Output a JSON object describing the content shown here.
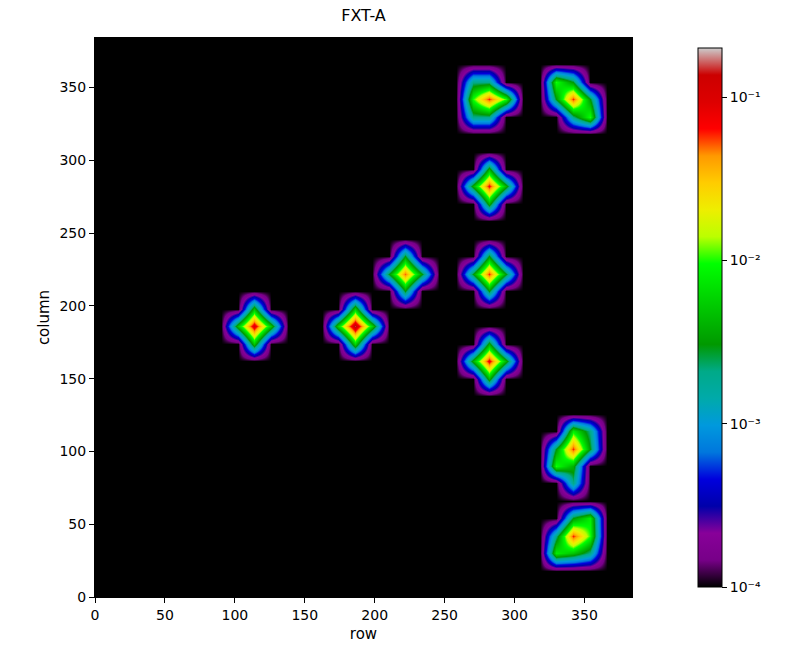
{
  "chart_data": {
    "type": "heatmap",
    "title": "FXT-A",
    "x_label": "row",
    "y_label": "column",
    "xlim": [
      0,
      384
    ],
    "ylim": [
      0,
      384
    ],
    "xticks": [
      0,
      50,
      100,
      150,
      200,
      250,
      300,
      350
    ],
    "yticks": [
      0,
      50,
      100,
      150,
      200,
      250,
      300,
      350
    ],
    "log": true,
    "grid": false,
    "x": [
      6,
      18,
      30,
      42,
      54,
      66,
      78,
      90,
      102,
      114,
      126,
      138,
      150,
      162,
      174,
      186,
      198,
      210,
      222,
      234,
      246,
      258,
      270,
      282,
      294,
      306,
      318,
      330,
      342,
      354,
      366,
      378
    ],
    "y": [
      6,
      18,
      30,
      42,
      54,
      66,
      78,
      90,
      102,
      114,
      126,
      138,
      150,
      162,
      174,
      186,
      198,
      210,
      222,
      234,
      246,
      258,
      270,
      282,
      294,
      306,
      318,
      330,
      342,
      354,
      366,
      378
    ],
    "z": [
      [
        0.0001,
        0.0001,
        0.0001,
        0.0001,
        0.0001,
        0.0001,
        0.0001,
        0.0001,
        0.0001,
        0.0001,
        0.0001,
        0.0001,
        0.0001,
        0.0001,
        0.0001,
        0.0001,
        0.0001,
        0.0001,
        0.0001,
        0.0001,
        0.0001,
        0.0001,
        0.0001,
        0.0001,
        0.0001,
        0.0001,
        0.0001,
        0.0001,
        0.0001,
        0.0001,
        0.0001,
        0.0001
      ],
      [
        0.0001,
        0.0001,
        0.0001,
        0.0001,
        0.0001,
        0.0001,
        0.0001,
        0.0001,
        0.0001,
        0.0001,
        0.0001,
        0.0001,
        0.0001,
        0.0001,
        0.0001,
        0.0001,
        0.0001,
        0.0001,
        0.0001,
        0.0001,
        0.0001,
        0.0001,
        0.0001,
        0.0001,
        0.0001,
        0.0001,
        0.0001,
        0.0001,
        0.0001,
        0.0001,
        0.0001,
        0.0001
      ],
      [
        0.0001,
        0.0001,
        0.0001,
        0.0001,
        0.0001,
        0.0001,
        0.0001,
        0.0001,
        0.0001,
        0.0001,
        0.0001,
        0.0001,
        0.0001,
        0.0001,
        0.0001,
        0.0001,
        0.0001,
        0.0001,
        0.0001,
        0.0001,
        0.0001,
        0.0001,
        0.0001,
        0.0001,
        0.0001,
        0.0001,
        0.0001,
        0.008,
        0.005,
        0.002,
        0.0001,
        0.0001
      ],
      [
        0.0001,
        0.0001,
        0.0001,
        0.0001,
        0.0001,
        0.0001,
        0.0001,
        0.0001,
        0.0001,
        0.0001,
        0.0001,
        0.0001,
        0.0001,
        0.0001,
        0.0001,
        0.0001,
        0.0001,
        0.0001,
        0.0001,
        0.0001,
        0.0001,
        0.0001,
        0.0001,
        0.0001,
        0.0001,
        0.0001,
        0.0001,
        0.002,
        0.06,
        0.01,
        0.0001,
        0.0001
      ],
      [
        0.0001,
        0.0001,
        0.0001,
        0.0001,
        0.0001,
        0.0001,
        0.0001,
        0.0001,
        0.0001,
        0.0001,
        0.0001,
        0.0001,
        0.0001,
        0.0001,
        0.0001,
        0.0001,
        0.0001,
        0.0001,
        0.0001,
        0.0001,
        0.0001,
        0.0001,
        0.0001,
        0.0001,
        0.0001,
        0.0001,
        0.0001,
        0.0001,
        0.003,
        0.008,
        0.0001,
        0.0001
      ],
      [
        0.0001,
        0.0001,
        0.0001,
        0.0001,
        0.0001,
        0.0001,
        0.0001,
        0.0001,
        0.0001,
        0.0001,
        0.0001,
        0.0001,
        0.0001,
        0.0001,
        0.0001,
        0.0001,
        0.0001,
        0.0001,
        0.0001,
        0.0001,
        0.0001,
        0.0001,
        0.0001,
        0.0001,
        0.0001,
        0.0001,
        0.0001,
        0.0001,
        0.0001,
        0.0001,
        0.0001,
        0.0001
      ],
      [
        0.0001,
        0.0001,
        0.0001,
        0.0001,
        0.0001,
        0.0001,
        0.0001,
        0.0001,
        0.0001,
        0.0001,
        0.0001,
        0.0001,
        0.0001,
        0.0001,
        0.0001,
        0.0001,
        0.0001,
        0.0001,
        0.0001,
        0.0001,
        0.0001,
        0.0001,
        0.0001,
        0.0001,
        0.0001,
        0.0001,
        0.0001,
        0.0001,
        0.002,
        0.0001,
        0.0001,
        0.0001
      ],
      [
        0.0001,
        0.0001,
        0.0001,
        0.0001,
        0.0001,
        0.0001,
        0.0001,
        0.0001,
        0.0001,
        0.0001,
        0.0001,
        0.0001,
        0.0001,
        0.0001,
        0.0001,
        0.0001,
        0.0001,
        0.0001,
        0.0001,
        0.0001,
        0.0001,
        0.0001,
        0.0001,
        0.0001,
        0.0001,
        0.0001,
        0.0001,
        0.01,
        0.004,
        0.0001,
        0.0001,
        0.0001
      ],
      [
        0.0001,
        0.0001,
        0.0001,
        0.0001,
        0.0001,
        0.0001,
        0.0001,
        0.0001,
        0.0001,
        0.0001,
        0.0001,
        0.0001,
        0.0001,
        0.0001,
        0.0001,
        0.0001,
        0.0001,
        0.0001,
        0.0001,
        0.0001,
        0.0001,
        0.0001,
        0.0001,
        0.0001,
        0.0001,
        0.0001,
        0.0001,
        0.003,
        0.06,
        0.003,
        0.0001,
        0.0001
      ],
      [
        0.0001,
        0.0001,
        0.0001,
        0.0001,
        0.0001,
        0.0001,
        0.0001,
        0.0001,
        0.0001,
        0.0001,
        0.0001,
        0.0001,
        0.0001,
        0.0001,
        0.0001,
        0.0001,
        0.0001,
        0.0001,
        0.0001,
        0.0001,
        0.0001,
        0.0001,
        0.0001,
        0.0001,
        0.0001,
        0.0001,
        0.0001,
        0.0001,
        0.008,
        0.002,
        0.0001,
        0.0001
      ],
      [
        0.0001,
        0.0001,
        0.0001,
        0.0001,
        0.0001,
        0.0001,
        0.0001,
        0.0001,
        0.0001,
        0.0001,
        0.0001,
        0.0001,
        0.0001,
        0.0001,
        0.0001,
        0.0001,
        0.0001,
        0.0001,
        0.0001,
        0.0001,
        0.0001,
        0.0001,
        0.0001,
        0.0001,
        0.0001,
        0.0001,
        0.0001,
        0.0001,
        0.0001,
        0.0001,
        0.0001,
        0.0001
      ],
      [
        0.0001,
        0.0001,
        0.0001,
        0.0001,
        0.0001,
        0.0001,
        0.0001,
        0.0001,
        0.0001,
        0.0001,
        0.0001,
        0.0001,
        0.0001,
        0.0001,
        0.0001,
        0.0001,
        0.0001,
        0.0001,
        0.0001,
        0.0001,
        0.0001,
        0.0001,
        0.0001,
        0.0001,
        0.0001,
        0.0001,
        0.0001,
        0.0001,
        0.0001,
        0.0001,
        0.0001,
        0.0001
      ],
      [
        0.0001,
        0.0001,
        0.0001,
        0.0001,
        0.0001,
        0.0001,
        0.0001,
        0.0001,
        0.0001,
        0.0001,
        0.0001,
        0.0001,
        0.0001,
        0.0001,
        0.0001,
        0.0001,
        0.0001,
        0.0001,
        0.0001,
        0.0001,
        0.0001,
        0.0001,
        0.0001,
        0.004,
        0.0001,
        0.0001,
        0.0001,
        0.0001,
        0.0001,
        0.0001,
        0.0001,
        0.0001
      ],
      [
        0.0001,
        0.0001,
        0.0001,
        0.0001,
        0.0001,
        0.0001,
        0.0001,
        0.0001,
        0.0001,
        0.0001,
        0.0001,
        0.0001,
        0.0001,
        0.0001,
        0.0001,
        0.0001,
        0.0001,
        0.0001,
        0.0001,
        0.0001,
        0.0001,
        0.0001,
        0.004,
        0.08,
        0.004,
        0.0001,
        0.0001,
        0.0001,
        0.0001,
        0.0001,
        0.0001,
        0.0001
      ],
      [
        0.0001,
        0.0001,
        0.0001,
        0.0001,
        0.0001,
        0.0001,
        0.0001,
        0.0001,
        0.0001,
        0.005,
        0.0001,
        0.0001,
        0.0001,
        0.0001,
        0.0001,
        0.006,
        0.0001,
        0.0001,
        0.0001,
        0.0001,
        0.0001,
        0.0001,
        0.0001,
        0.004,
        0.0001,
        0.0001,
        0.0001,
        0.0001,
        0.0001,
        0.0001,
        0.0001,
        0.0001
      ],
      [
        0.0001,
        0.0001,
        0.0001,
        0.0001,
        0.0001,
        0.0001,
        0.0001,
        0.0001,
        0.005,
        0.1,
        0.005,
        0.0001,
        0.0001,
        0.0001,
        0.006,
        0.15,
        0.006,
        0.0001,
        0.0001,
        0.0001,
        0.0001,
        0.0001,
        0.0001,
        0.0001,
        0.0001,
        0.0001,
        0.0001,
        0.0001,
        0.0001,
        0.0001,
        0.0001,
        0.0001
      ],
      [
        0.0001,
        0.0001,
        0.0001,
        0.0001,
        0.0001,
        0.0001,
        0.0001,
        0.0001,
        0.0001,
        0.005,
        0.0001,
        0.0001,
        0.0001,
        0.0001,
        0.0001,
        0.006,
        0.0001,
        0.0001,
        0.0001,
        0.0001,
        0.0001,
        0.0001,
        0.0001,
        0.0001,
        0.0001,
        0.0001,
        0.0001,
        0.0001,
        0.0001,
        0.0001,
        0.0001,
        0.0001
      ],
      [
        0.0001,
        0.0001,
        0.0001,
        0.0001,
        0.0001,
        0.0001,
        0.0001,
        0.0001,
        0.0001,
        0.0001,
        0.0001,
        0.0001,
        0.0001,
        0.0001,
        0.0001,
        0.0001,
        0.0001,
        0.0001,
        0.003,
        0.0001,
        0.0001,
        0.0001,
        0.0001,
        0.003,
        0.0001,
        0.0001,
        0.0001,
        0.0001,
        0.0001,
        0.0001,
        0.0001,
        0.0001
      ],
      [
        0.0001,
        0.0001,
        0.0001,
        0.0001,
        0.0001,
        0.0001,
        0.0001,
        0.0001,
        0.0001,
        0.0001,
        0.0001,
        0.0001,
        0.0001,
        0.0001,
        0.0001,
        0.0001,
        0.0001,
        0.003,
        0.05,
        0.003,
        0.0001,
        0.0001,
        0.003,
        0.06,
        0.003,
        0.0001,
        0.0001,
        0.0001,
        0.0001,
        0.0001,
        0.0001,
        0.0001
      ],
      [
        0.0001,
        0.0001,
        0.0001,
        0.0001,
        0.0001,
        0.0001,
        0.0001,
        0.0001,
        0.0001,
        0.0001,
        0.0001,
        0.0001,
        0.0001,
        0.0001,
        0.0001,
        0.0001,
        0.0001,
        0.0001,
        0.003,
        0.0001,
        0.0001,
        0.0001,
        0.0001,
        0.003,
        0.0001,
        0.0001,
        0.0001,
        0.0001,
        0.0001,
        0.0001,
        0.0001,
        0.0001
      ],
      [
        0.0001,
        0.0001,
        0.0001,
        0.0001,
        0.0001,
        0.0001,
        0.0001,
        0.0001,
        0.0001,
        0.0001,
        0.0001,
        0.0001,
        0.0001,
        0.0001,
        0.0001,
        0.0001,
        0.0001,
        0.0001,
        0.0001,
        0.0001,
        0.0001,
        0.0001,
        0.0001,
        0.0001,
        0.0001,
        0.0001,
        0.0001,
        0.0001,
        0.0001,
        0.0001,
        0.0001,
        0.0001
      ],
      [
        0.0001,
        0.0001,
        0.0001,
        0.0001,
        0.0001,
        0.0001,
        0.0001,
        0.0001,
        0.0001,
        0.0001,
        0.0001,
        0.0001,
        0.0001,
        0.0001,
        0.0001,
        0.0001,
        0.0001,
        0.0001,
        0.0001,
        0.0001,
        0.0001,
        0.0001,
        0.0001,
        0.0001,
        0.0001,
        0.0001,
        0.0001,
        0.0001,
        0.0001,
        0.0001,
        0.0001,
        0.0001
      ],
      [
        0.0001,
        0.0001,
        0.0001,
        0.0001,
        0.0001,
        0.0001,
        0.0001,
        0.0001,
        0.0001,
        0.0001,
        0.0001,
        0.0001,
        0.0001,
        0.0001,
        0.0001,
        0.0001,
        0.0001,
        0.0001,
        0.0001,
        0.0001,
        0.0001,
        0.0001,
        0.0001,
        0.004,
        0.0001,
        0.0001,
        0.0001,
        0.0001,
        0.0001,
        0.0001,
        0.0001,
        0.0001
      ],
      [
        0.0001,
        0.0001,
        0.0001,
        0.0001,
        0.0001,
        0.0001,
        0.0001,
        0.0001,
        0.0001,
        0.0001,
        0.0001,
        0.0001,
        0.0001,
        0.0001,
        0.0001,
        0.0001,
        0.0001,
        0.0001,
        0.0001,
        0.0001,
        0.0001,
        0.0001,
        0.004,
        0.07,
        0.004,
        0.0001,
        0.0001,
        0.0001,
        0.0001,
        0.0001,
        0.0001,
        0.0001
      ],
      [
        0.0001,
        0.0001,
        0.0001,
        0.0001,
        0.0001,
        0.0001,
        0.0001,
        0.0001,
        0.0001,
        0.0001,
        0.0001,
        0.0001,
        0.0001,
        0.0001,
        0.0001,
        0.0001,
        0.0001,
        0.0001,
        0.0001,
        0.0001,
        0.0001,
        0.0001,
        0.0001,
        0.004,
        0.0001,
        0.0001,
        0.0001,
        0.0001,
        0.0001,
        0.0001,
        0.0001,
        0.0001
      ],
      [
        0.0001,
        0.0001,
        0.0001,
        0.0001,
        0.0001,
        0.0001,
        0.0001,
        0.0001,
        0.0001,
        0.0001,
        0.0001,
        0.0001,
        0.0001,
        0.0001,
        0.0001,
        0.0001,
        0.0001,
        0.0001,
        0.0001,
        0.0001,
        0.0001,
        0.0001,
        0.0001,
        0.0001,
        0.0001,
        0.0001,
        0.0001,
        0.0001,
        0.0001,
        0.0001,
        0.0001,
        0.0001
      ],
      [
        0.0001,
        0.0001,
        0.0001,
        0.0001,
        0.0001,
        0.0001,
        0.0001,
        0.0001,
        0.0001,
        0.0001,
        0.0001,
        0.0001,
        0.0001,
        0.0001,
        0.0001,
        0.0001,
        0.0001,
        0.0001,
        0.0001,
        0.0001,
        0.0001,
        0.0001,
        0.0001,
        0.0001,
        0.0001,
        0.0001,
        0.0001,
        0.0001,
        0.0001,
        0.0001,
        0.0001,
        0.0001
      ],
      [
        0.0001,
        0.0001,
        0.0001,
        0.0001,
        0.0001,
        0.0001,
        0.0001,
        0.0001,
        0.0001,
        0.0001,
        0.0001,
        0.0001,
        0.0001,
        0.0001,
        0.0001,
        0.0001,
        0.0001,
        0.0001,
        0.0001,
        0.0001,
        0.0001,
        0.0001,
        0.002,
        0.002,
        0.0001,
        0.0001,
        0.0001,
        0.0001,
        0.002,
        0.01,
        0.0001,
        0.0001
      ],
      [
        0.0001,
        0.0001,
        0.0001,
        0.0001,
        0.0001,
        0.0001,
        0.0001,
        0.0001,
        0.0001,
        0.0001,
        0.0001,
        0.0001,
        0.0001,
        0.0001,
        0.0001,
        0.0001,
        0.0001,
        0.0001,
        0.0001,
        0.0001,
        0.0001,
        0.0001,
        0.01,
        0.06,
        0.01,
        0.0001,
        0.0001,
        0.003,
        0.06,
        0.003,
        0.0001,
        0.0001
      ],
      [
        0.0001,
        0.0001,
        0.0001,
        0.0001,
        0.0001,
        0.0001,
        0.0001,
        0.0001,
        0.0001,
        0.0001,
        0.0001,
        0.0001,
        0.0001,
        0.0001,
        0.0001,
        0.0001,
        0.0001,
        0.0001,
        0.0001,
        0.0001,
        0.0001,
        0.0001,
        0.002,
        0.002,
        0.0001,
        0.0001,
        0.0001,
        0.01,
        0.003,
        0.0001,
        0.0001,
        0.0001
      ],
      [
        0.0001,
        0.0001,
        0.0001,
        0.0001,
        0.0001,
        0.0001,
        0.0001,
        0.0001,
        0.0001,
        0.0001,
        0.0001,
        0.0001,
        0.0001,
        0.0001,
        0.0001,
        0.0001,
        0.0001,
        0.0001,
        0.0001,
        0.0001,
        0.0001,
        0.0001,
        0.0001,
        0.0001,
        0.0001,
        0.0001,
        0.0001,
        0.0001,
        0.0001,
        0.0001,
        0.0001,
        0.0001
      ],
      [
        0.0001,
        0.0001,
        0.0001,
        0.0001,
        0.0001,
        0.0001,
        0.0001,
        0.0001,
        0.0001,
        0.0001,
        0.0001,
        0.0001,
        0.0001,
        0.0001,
        0.0001,
        0.0001,
        0.0001,
        0.0001,
        0.0001,
        0.0001,
        0.0001,
        0.0001,
        0.0001,
        0.0001,
        0.0001,
        0.0001,
        0.0001,
        0.0001,
        0.0001,
        0.0001,
        0.0001,
        0.0001
      ]
    ],
    "colorbar_range": [
      0.0001,
      0.2
    ],
    "colorbar_ticks": [
      {
        "value": 0.0001,
        "label": "10⁻⁴"
      },
      {
        "value": 0.001,
        "label": "10⁻³"
      },
      {
        "value": 0.01,
        "label": "10⁻²"
      },
      {
        "value": 0.1,
        "label": "10⁻¹"
      }
    ]
  }
}
